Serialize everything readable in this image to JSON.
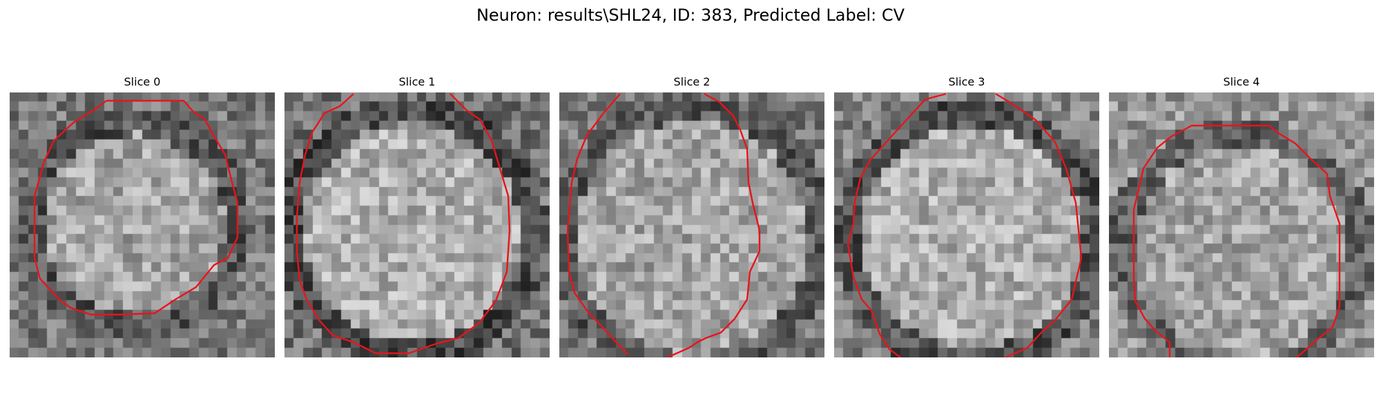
{
  "figure": {
    "title": "Neuron: results\\SHL24, ID: 383, Predicted Label: CV"
  },
  "colors": {
    "contour": "#e8141c",
    "colormap": "gray"
  },
  "slices": [
    {
      "title": "Slice 0"
    },
    {
      "title": "Slice 1"
    },
    {
      "title": "Slice 2"
    },
    {
      "title": "Slice 3"
    },
    {
      "title": "Slice 4"
    }
  ]
}
